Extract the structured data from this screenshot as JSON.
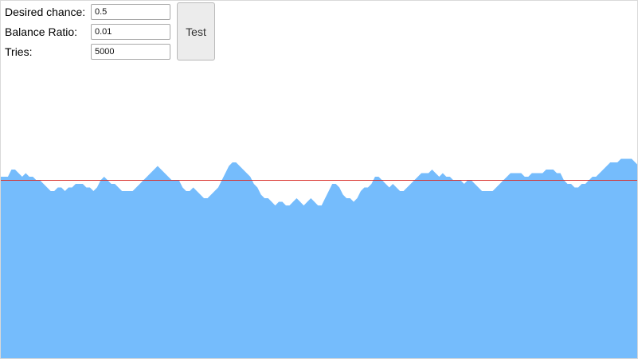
{
  "form": {
    "desired_chance_label": "Desired chance:",
    "desired_chance_value": "0.5",
    "balance_ratio_label": "Balance Ratio:",
    "balance_ratio_value": "0.01",
    "tries_label": "Tries:",
    "tries_value": "5000",
    "test_button_label": "Test"
  },
  "chart_data": {
    "type": "area",
    "title": "",
    "xlabel": "",
    "ylabel": "",
    "reference_line": 0.5,
    "fill_color": "#75bcfc",
    "line_color": "#d9302b",
    "ylim": [
      0,
      1
    ],
    "y": [
      0.51,
      0.51,
      0.51,
      0.53,
      0.53,
      0.52,
      0.51,
      0.52,
      0.51,
      0.51,
      0.5,
      0.5,
      0.49,
      0.48,
      0.47,
      0.47,
      0.48,
      0.48,
      0.47,
      0.48,
      0.48,
      0.49,
      0.49,
      0.49,
      0.48,
      0.48,
      0.47,
      0.48,
      0.5,
      0.51,
      0.5,
      0.49,
      0.49,
      0.48,
      0.47,
      0.47,
      0.47,
      0.47,
      0.48,
      0.49,
      0.5,
      0.51,
      0.52,
      0.53,
      0.54,
      0.53,
      0.52,
      0.51,
      0.5,
      0.5,
      0.5,
      0.48,
      0.47,
      0.47,
      0.48,
      0.47,
      0.46,
      0.45,
      0.45,
      0.46,
      0.47,
      0.48,
      0.5,
      0.52,
      0.54,
      0.55,
      0.55,
      0.54,
      0.53,
      0.52,
      0.51,
      0.49,
      0.48,
      0.46,
      0.45,
      0.45,
      0.44,
      0.43,
      0.44,
      0.44,
      0.43,
      0.43,
      0.44,
      0.45,
      0.44,
      0.43,
      0.44,
      0.45,
      0.44,
      0.43,
      0.43,
      0.45,
      0.47,
      0.49,
      0.49,
      0.48,
      0.46,
      0.45,
      0.45,
      0.44,
      0.45,
      0.47,
      0.48,
      0.48,
      0.49,
      0.51,
      0.51,
      0.5,
      0.49,
      0.48,
      0.49,
      0.48,
      0.47,
      0.47,
      0.48,
      0.49,
      0.5,
      0.51,
      0.52,
      0.52,
      0.52,
      0.53,
      0.52,
      0.51,
      0.52,
      0.51,
      0.51,
      0.5,
      0.5,
      0.5,
      0.49,
      0.5,
      0.5,
      0.49,
      0.48,
      0.47,
      0.47,
      0.47,
      0.47,
      0.48,
      0.49,
      0.5,
      0.51,
      0.52,
      0.52,
      0.52,
      0.52,
      0.51,
      0.51,
      0.52,
      0.52,
      0.52,
      0.52,
      0.53,
      0.53,
      0.53,
      0.52,
      0.52,
      0.5,
      0.49,
      0.49,
      0.48,
      0.48,
      0.49,
      0.49,
      0.5,
      0.51,
      0.51,
      0.52,
      0.53,
      0.54,
      0.55,
      0.55,
      0.55,
      0.56,
      0.56,
      0.56,
      0.56,
      0.55,
      0.54
    ]
  }
}
